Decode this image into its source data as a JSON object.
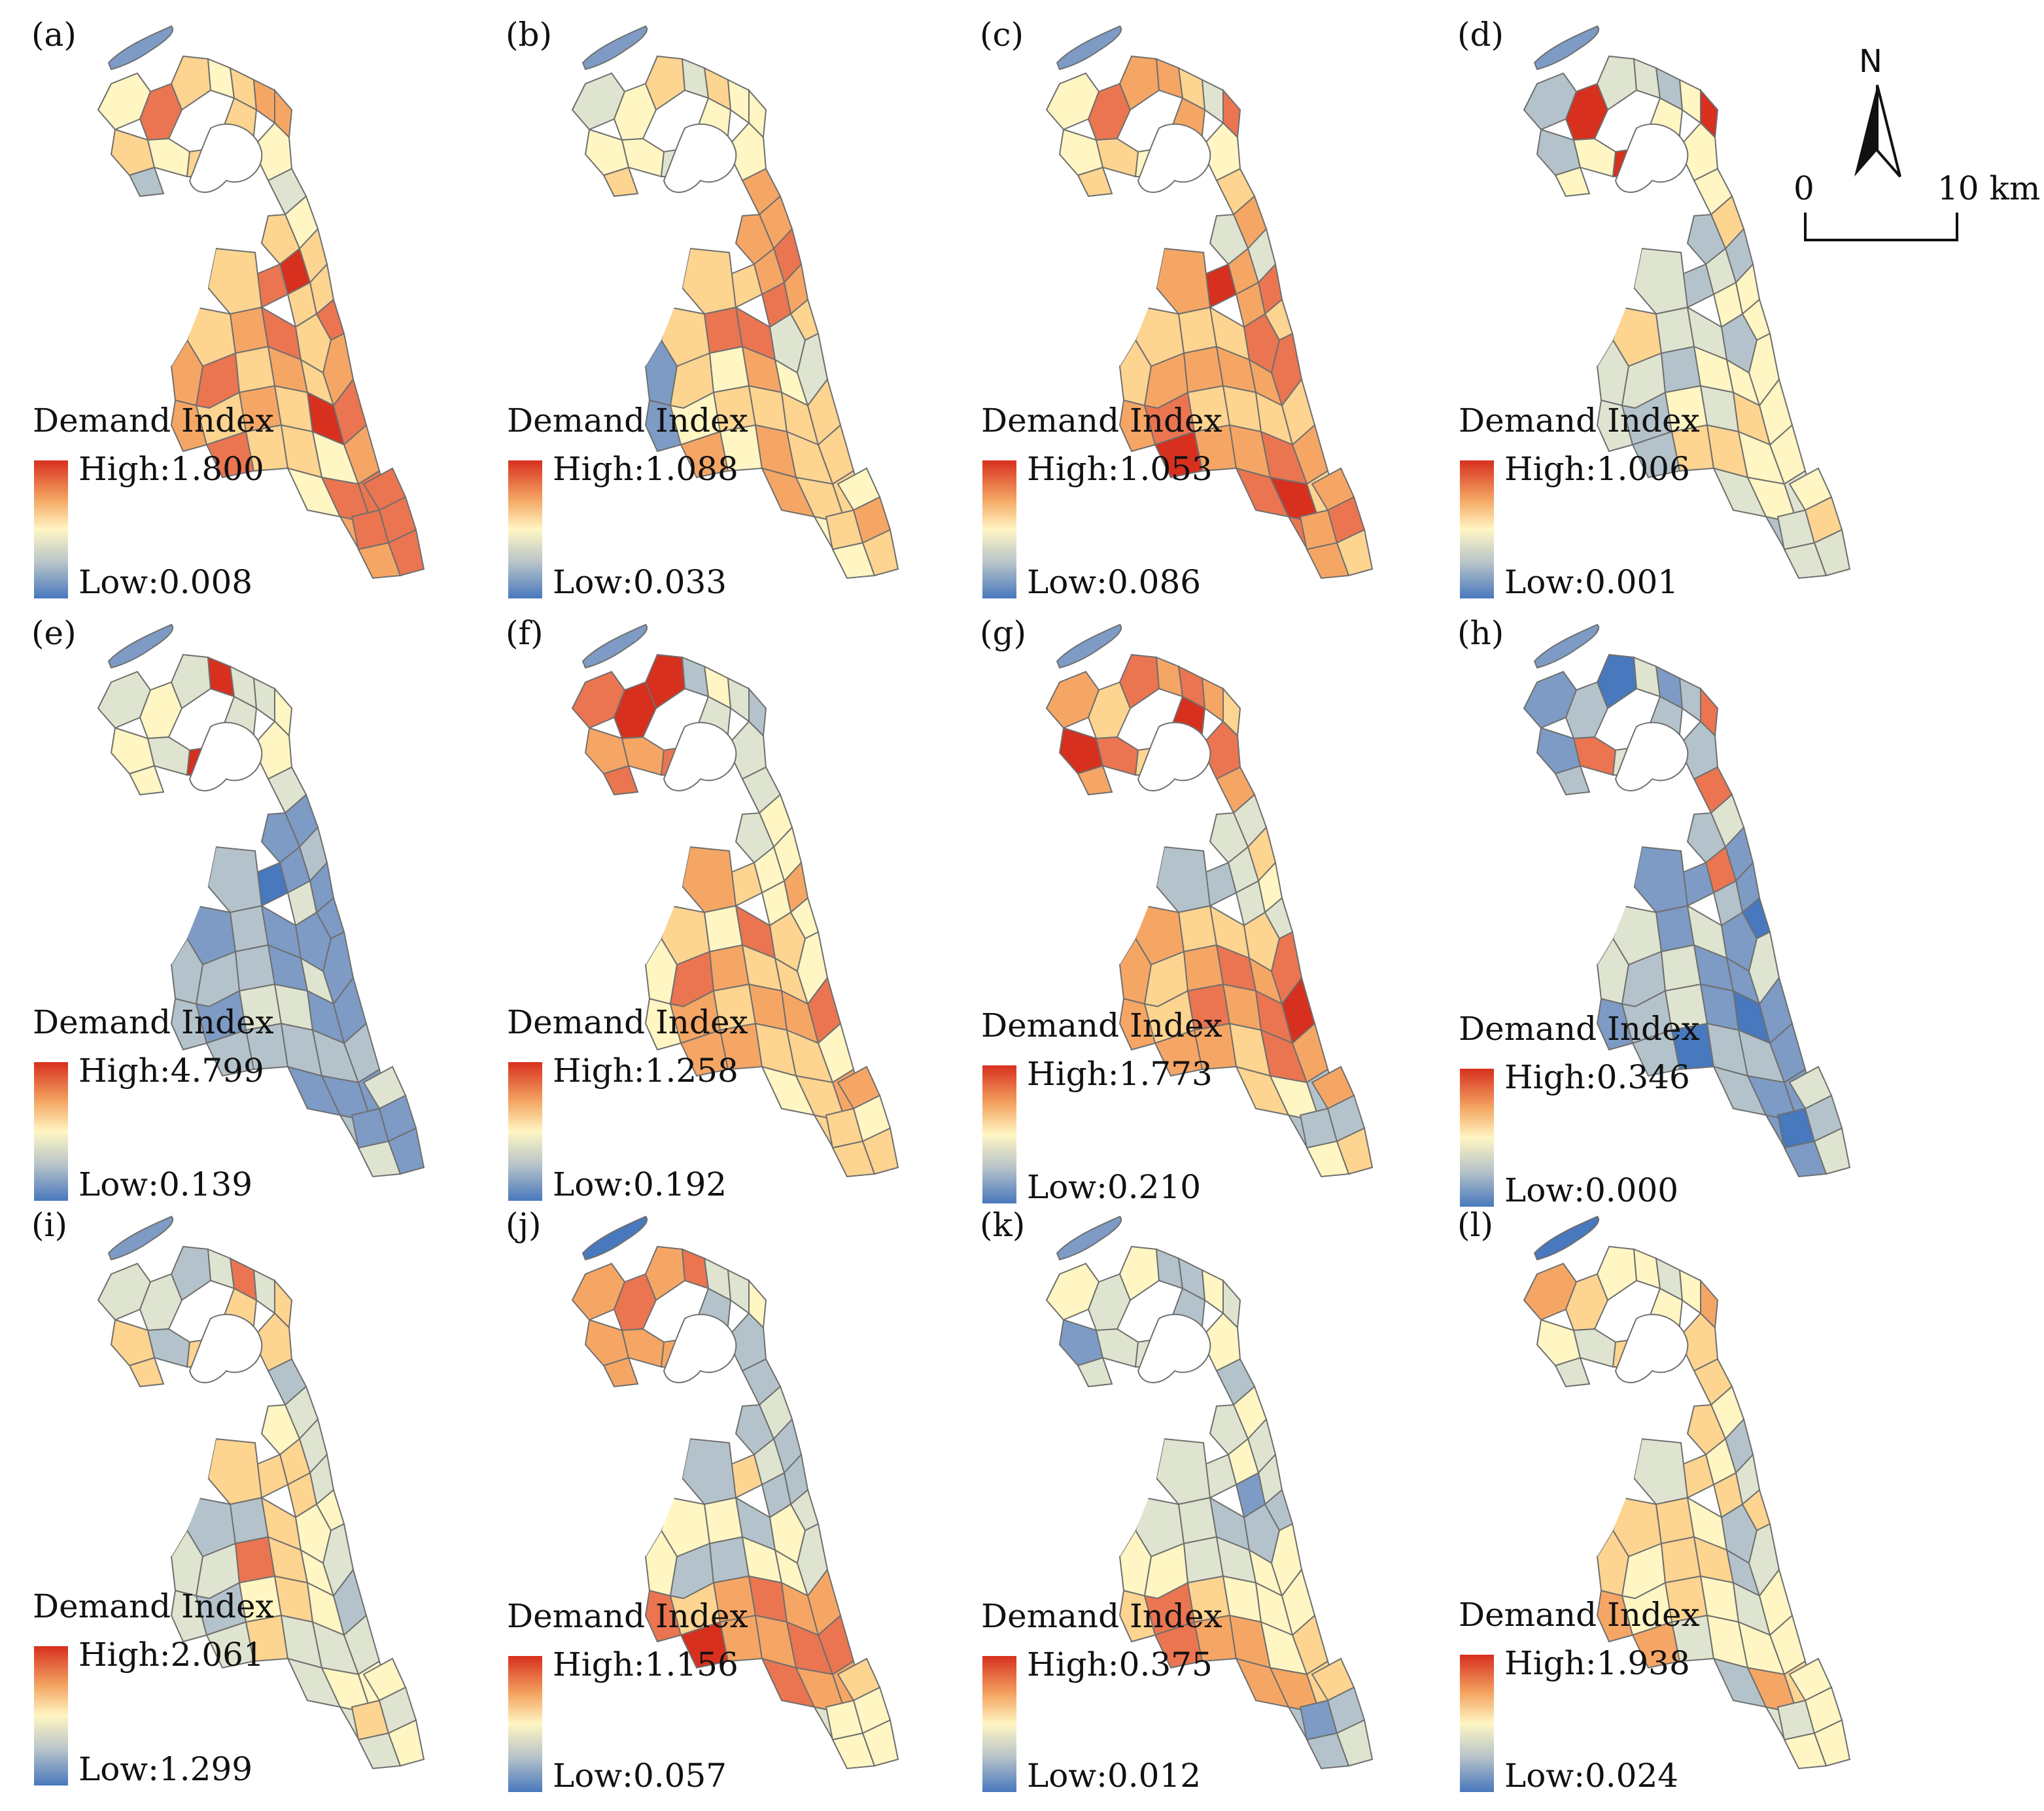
{
  "legend_title": "Demand Index",
  "north_label": "N",
  "scale": {
    "zero": "0",
    "end": "10 km"
  },
  "colors": {
    "high": "#d7301f",
    "mid": "#fff6c3",
    "low": "#4878bd",
    "outline": "#6f6f6f"
  },
  "panels": [
    {
      "label": "(a)",
      "high": "High:1.800",
      "low": "Low:0.008",
      "pattern": "a"
    },
    {
      "label": "(b)",
      "high": "High:1.088",
      "low": "Low:0.033",
      "pattern": "b"
    },
    {
      "label": "(c)",
      "high": "High:1.053",
      "low": "Low:0.086",
      "pattern": "c"
    },
    {
      "label": "(d)",
      "high": "High:1.006",
      "low": "Low:0.001",
      "pattern": "d"
    },
    {
      "label": "(e)",
      "high": "High:4.799",
      "low": "Low:0.139",
      "pattern": "e"
    },
    {
      "label": "(f)",
      "high": "High:1.258",
      "low": "Low:0.192",
      "pattern": "f"
    },
    {
      "label": "(g)",
      "high": "High:1.773",
      "low": "Low:0.210",
      "pattern": "g"
    },
    {
      "label": "(h)",
      "high": "High:0.346",
      "low": "Low:0.000",
      "pattern": "h"
    },
    {
      "label": "(i)",
      "high": "High:2.061",
      "low": "Low:1.299",
      "pattern": "i"
    },
    {
      "label": "(j)",
      "high": "High:1.156",
      "low": "Low:0.057",
      "pattern": "j"
    },
    {
      "label": "(k)",
      "high": "High:0.375",
      "low": "Low:0.012",
      "pattern": "k"
    },
    {
      "label": "(l)",
      "high": "High:1.938",
      "low": "Low:0.024",
      "pattern": "l"
    }
  ]
}
